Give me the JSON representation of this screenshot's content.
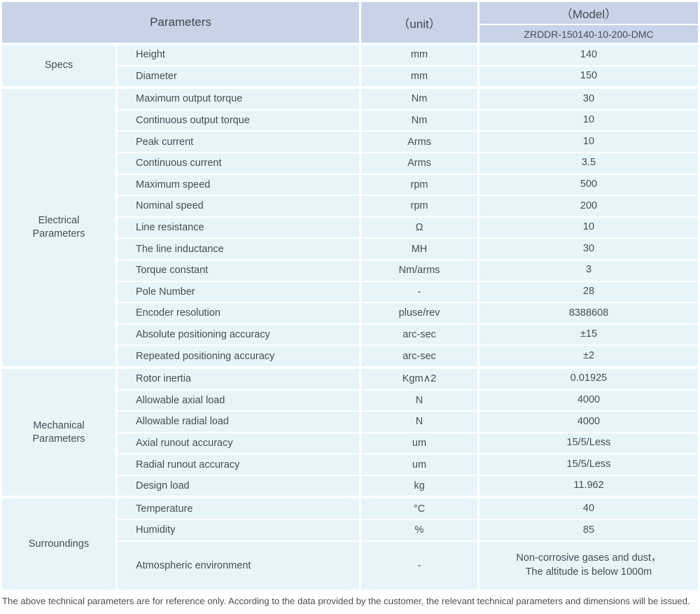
{
  "table": {
    "header": {
      "parameters_label": "Parameters",
      "unit_label": "（unit）",
      "model_label": "（Model）",
      "model_value": "ZRDDR-150140-10-200-DMC"
    },
    "sections": [
      {
        "group": "Specs",
        "rows": [
          {
            "param": "Height",
            "unit": "mm",
            "value": "140"
          },
          {
            "param": "Diameter",
            "unit": "mm",
            "value": "150"
          }
        ]
      },
      {
        "group": "Electrical\nParameters",
        "rows": [
          {
            "param": "Maximum output torque",
            "unit": "Nm",
            "value": "30"
          },
          {
            "param": "Continuous output torque",
            "unit": "Nm",
            "value": "10"
          },
          {
            "param": "Peak current",
            "unit": "Arms",
            "value": "10"
          },
          {
            "param": "Continuous current",
            "unit": "Arms",
            "value": "3.5"
          },
          {
            "param": "Maximum speed",
            "unit": "rpm",
            "value": "500"
          },
          {
            "param": "Nominal speed",
            "unit": "rpm",
            "value": "200"
          },
          {
            "param": "Line resistance",
            "unit": "Ω",
            "value": "10"
          },
          {
            "param": "The line inductance",
            "unit": "MH",
            "value": "30"
          },
          {
            "param": "Torque constant",
            "unit": "Nm/arms",
            "value": "3"
          },
          {
            "param": "Pole Number",
            "unit": "-",
            "value": "28"
          },
          {
            "param": "Encoder resolution",
            "unit": "pluse/rev",
            "value": "8388608"
          },
          {
            "param": "Absolute positioning accuracy",
            "unit": "arc-sec",
            "value": "±15"
          },
          {
            "param": "Repeated positioning accuracy",
            "unit": "arc-sec",
            "value": "±2"
          }
        ]
      },
      {
        "group": "Mechanical\nParameters",
        "rows": [
          {
            "param": "Rotor inertia",
            "unit": "Kgm∧2",
            "value": "0.01925"
          },
          {
            "param": "Allowable axial load",
            "unit": "N",
            "value": "4000"
          },
          {
            "param": "Allowable radial load",
            "unit": "N",
            "value": "4000"
          },
          {
            "param": "Axial runout accuracy",
            "unit": "um",
            "value": "15/5/Less"
          },
          {
            "param": "Radial runout accuracy",
            "unit": "um",
            "value": "15/5/Less"
          },
          {
            "param": "Design load",
            "unit": "kg",
            "value": "11.962"
          }
        ]
      },
      {
        "group": "Surroundings",
        "rows": [
          {
            "param": "Temperature",
            "unit": "°C",
            "value": "40"
          },
          {
            "param": "Humidity",
            "unit": "%",
            "value": "85"
          },
          {
            "param": "Atmospheric environment",
            "unit": "-",
            "value": "Non-corrosive gases and dust，\nThe altitude is below 1000m",
            "tall": true
          }
        ]
      }
    ]
  },
  "footer": {
    "note": "The above technical parameters are for reference only. According to the data provided by the customer, the relevant technical parameters and dimensions will be issued."
  },
  "colors": {
    "header_bg": "#c9d3e8",
    "cell_bg": "#e7f5fb",
    "text": "#474d53"
  }
}
